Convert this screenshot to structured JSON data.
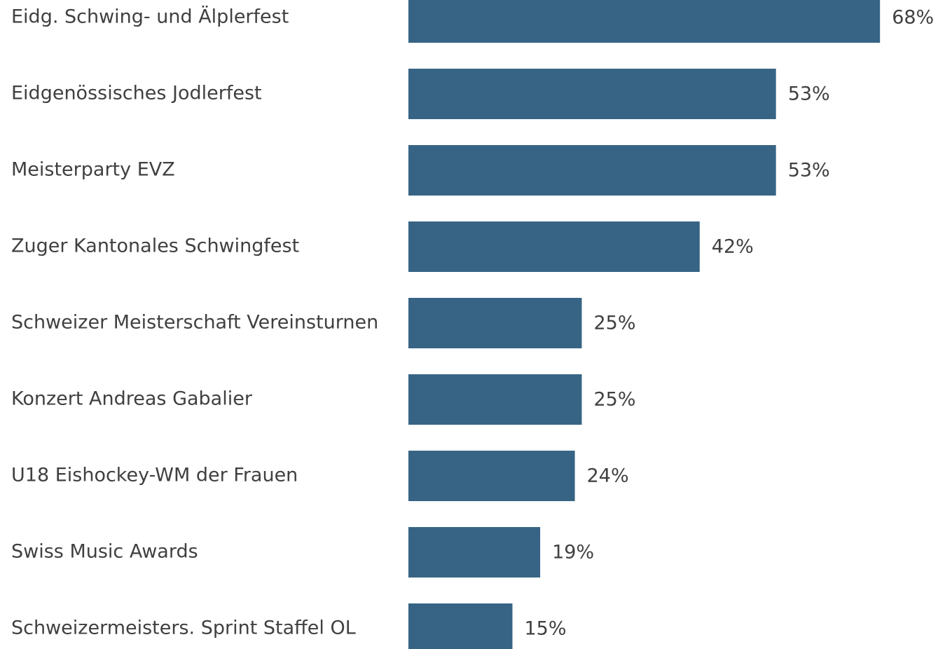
{
  "chart_data": {
    "type": "barh",
    "categories": [
      "Eidg. Schwing- und Älplerfest",
      "Eidgenössisches Jodlerfest",
      "Meisterparty EVZ",
      "Zuger Kantonales Schwingfest",
      "Schweizer Meisterschaft Vereinsturnen",
      "Konzert Andreas Gabalier",
      "U18 Eishockey-WM der Frauen",
      "Swiss Music Awards",
      "Schweizermeisters. Sprint Staffel OL"
    ],
    "values": [
      68,
      53,
      53,
      42,
      25,
      25,
      24,
      19,
      15
    ],
    "value_labels": [
      "68%",
      "53%",
      "53%",
      "42%",
      "25%",
      "25%",
      "24%",
      "19%",
      "15%"
    ],
    "color": "#376485"
  }
}
